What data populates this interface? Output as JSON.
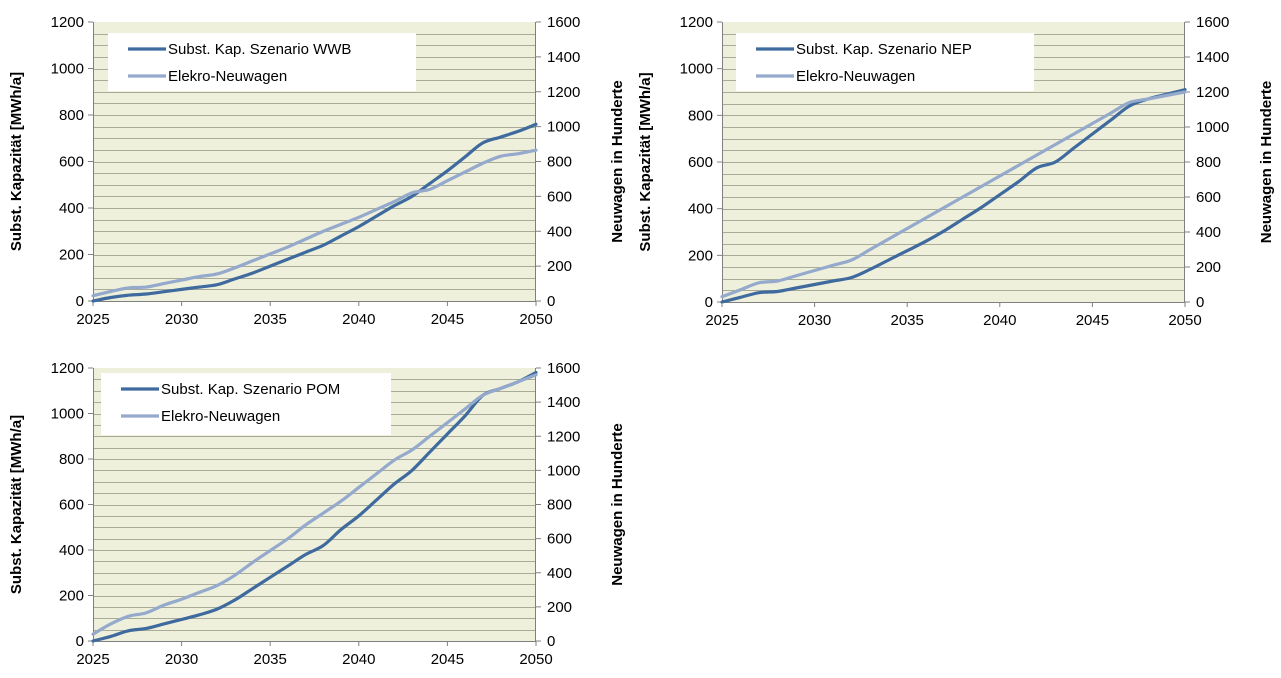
{
  "colors": {
    "plot_background": "#eef0dc",
    "gridline": "#a8ab98",
    "series_capacity": "#3f6a9e",
    "series_newcars": "#94a9cc"
  },
  "chart_data": [
    {
      "type": "line",
      "x": [
        2025,
        2026,
        2027,
        2028,
        2029,
        2030,
        2031,
        2032,
        2033,
        2034,
        2035,
        2036,
        2037,
        2038,
        2039,
        2040,
        2041,
        2042,
        2043,
        2044,
        2045,
        2046,
        2047,
        2048,
        2049,
        2050
      ],
      "xticks": [
        2025,
        2030,
        2035,
        2040,
        2045,
        2050
      ],
      "xlim": [
        2025,
        2050
      ],
      "ylabel": "Subst. Kapazität [MWh/a]",
      "ylim": [
        0,
        1200
      ],
      "yticks": [
        0,
        200,
        400,
        600,
        800,
        1000,
        1200
      ],
      "y2label": "Neuwagen in Hunderte",
      "y2lim": [
        0,
        1600
      ],
      "y2ticks": [
        0,
        200,
        400,
        600,
        800,
        1000,
        1200,
        1400,
        1600
      ],
      "grid": true,
      "legend_position": "top-left",
      "series": [
        {
          "name": "Subst. Kap. Szenario WWB",
          "axis": "left",
          "color": "#3f6a9e",
          "values": [
            0,
            15,
            25,
            30,
            40,
            50,
            60,
            70,
            95,
            120,
            150,
            180,
            210,
            240,
            280,
            320,
            365,
            410,
            450,
            505,
            560,
            620,
            680,
            705,
            730,
            760
          ]
        },
        {
          "name": "Elekro-Neuwagen",
          "axis": "right",
          "color": "#94a9cc",
          "values": [
            30,
            55,
            75,
            80,
            100,
            120,
            140,
            155,
            190,
            230,
            270,
            310,
            355,
            400,
            440,
            480,
            525,
            570,
            620,
            640,
            690,
            740,
            790,
            830,
            845,
            865
          ]
        }
      ]
    },
    {
      "type": "line",
      "x": [
        2025,
        2026,
        2027,
        2028,
        2029,
        2030,
        2031,
        2032,
        2033,
        2034,
        2035,
        2036,
        2037,
        2038,
        2039,
        2040,
        2041,
        2042,
        2043,
        2044,
        2045,
        2046,
        2047,
        2048,
        2049,
        2050
      ],
      "xticks": [
        2025,
        2030,
        2035,
        2040,
        2045,
        2050
      ],
      "xlim": [
        2025,
        2050
      ],
      "ylabel": "Subst. Kapazität [MWh/a]",
      "ylim": [
        0,
        1200
      ],
      "yticks": [
        0,
        200,
        400,
        600,
        800,
        1000,
        1200
      ],
      "y2label": "Neuwagen in Hunderte",
      "y2lim": [
        0,
        1600
      ],
      "y2ticks": [
        0,
        200,
        400,
        600,
        800,
        1000,
        1200,
        1400,
        1600
      ],
      "grid": true,
      "legend_position": "top-left",
      "series": [
        {
          "name": "Subst. Kap. Szenario NEP",
          "axis": "left",
          "color": "#3f6a9e",
          "values": [
            0,
            20,
            40,
            45,
            60,
            75,
            90,
            105,
            140,
            180,
            220,
            260,
            305,
            355,
            405,
            460,
            515,
            575,
            600,
            660,
            720,
            780,
            840,
            870,
            890,
            910
          ]
        },
        {
          "name": "Elekro-Neuwagen",
          "axis": "right",
          "color": "#94a9cc",
          "values": [
            30,
            70,
            110,
            120,
            150,
            180,
            210,
            240,
            300,
            360,
            420,
            480,
            540,
            600,
            660,
            720,
            780,
            840,
            900,
            960,
            1020,
            1080,
            1140,
            1160,
            1180,
            1200
          ]
        }
      ]
    },
    {
      "type": "line",
      "x": [
        2025,
        2026,
        2027,
        2028,
        2029,
        2030,
        2031,
        2032,
        2033,
        2034,
        2035,
        2036,
        2037,
        2038,
        2039,
        2040,
        2041,
        2042,
        2043,
        2044,
        2045,
        2046,
        2047,
        2048,
        2049,
        2050
      ],
      "xticks": [
        2025,
        2030,
        2035,
        2040,
        2045,
        2050
      ],
      "xlim": [
        2025,
        2050
      ],
      "ylabel": "Subst. Kapazität [MWh/a]",
      "ylim": [
        0,
        1200
      ],
      "yticks": [
        0,
        200,
        400,
        600,
        800,
        1000,
        1200
      ],
      "y2label": "Neuwagen in Hunderte",
      "y2lim": [
        0,
        1600
      ],
      "y2ticks": [
        0,
        200,
        400,
        600,
        800,
        1000,
        1200,
        1400,
        1600
      ],
      "grid": true,
      "legend_position": "top-left",
      "series": [
        {
          "name": "Subst. Kap. Szenario POM",
          "axis": "left",
          "color": "#3f6a9e",
          "values": [
            0,
            20,
            45,
            55,
            75,
            95,
            115,
            140,
            180,
            230,
            280,
            330,
            380,
            420,
            490,
            550,
            620,
            690,
            750,
            830,
            910,
            990,
            1080,
            1110,
            1140,
            1180
          ]
        },
        {
          "name": "Elekro-Neuwagen",
          "axis": "right",
          "color": "#94a9cc",
          "values": [
            40,
            100,
            145,
            165,
            210,
            245,
            285,
            325,
            385,
            460,
            530,
            600,
            680,
            750,
            820,
            900,
            980,
            1060,
            1120,
            1200,
            1280,
            1360,
            1440,
            1480,
            1520,
            1560
          ]
        }
      ]
    }
  ]
}
